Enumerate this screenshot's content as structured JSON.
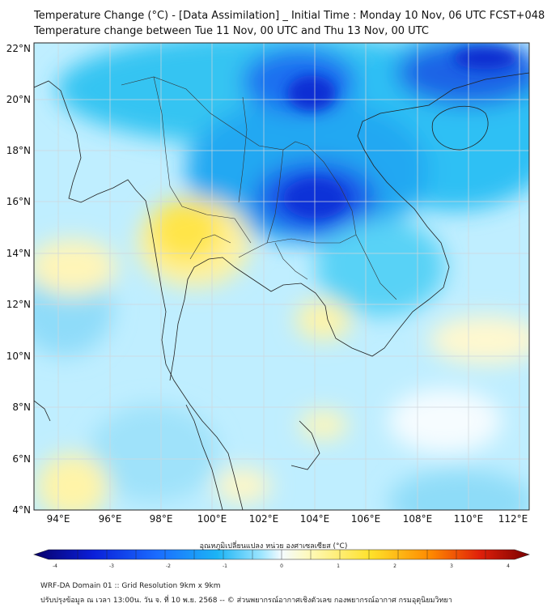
{
  "title_line1": "Temperature Change (°C) - [Data Assimilation] _ Initial Time : Monday 10 Nov, 06 UTC FCST+048",
  "title_line2": "Temperature change between Tue 11 Nov, 00 UTC and Thu 13 Nov, 00 UTC",
  "colorbar_title": "อุณหภูมิเปลี่ยนแปลง หน่วย องศาเซลเซียส (°C)",
  "colorbar_ticks": [
    "-4",
    "-3",
    "-2",
    "-1",
    "0",
    "1",
    "2",
    "3",
    "4"
  ],
  "colorbar_range": [
    -4,
    4
  ],
  "colorbar_colors": [
    "#08006a",
    "#0a1fd9",
    "#1a6dff",
    "#1cb4f5",
    "#9fe6ff",
    "#f4fbff",
    "#fff9b6",
    "#ffe12a",
    "#ff8a00",
    "#e0200a",
    "#7a0000"
  ],
  "lat_labels": [
    "22°N",
    "20°N",
    "18°N",
    "16°N",
    "14°N",
    "12°N",
    "10°N",
    "8°N",
    "6°N",
    "4°N"
  ],
  "lon_labels": [
    "94°E",
    "96°E",
    "98°E",
    "100°E",
    "102°E",
    "104°E",
    "106°E",
    "108°E",
    "110°E",
    "112°E"
  ],
  "footer_line1": "WRF-DA Domain 01 :: Grid Resolution 9km x 9km",
  "footer_line2": "ปรับปรุงข้อมูล ณ เวลา 13:00น. วัน จ. ที่ 10 พ.ย. 2568 -- © ส่วนพยากรณ์อากาศเชิงตัวเลข กองพยากรณ์อากาศ กรมอุตุนิยมวิทยา"
}
